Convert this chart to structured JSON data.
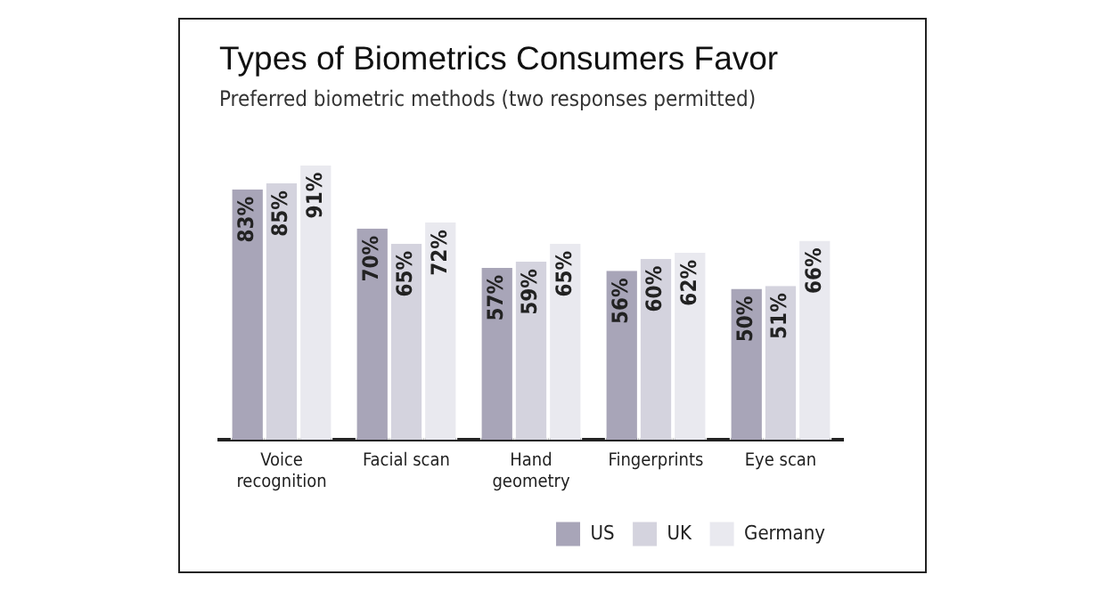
{
  "chart_data": {
    "type": "bar",
    "title": "Types of Biometrics Consumers Favor",
    "subtitle": "Preferred biometric methods (two responses permitted)",
    "categories": [
      "Voice recognition",
      "Facial scan",
      "Hand geometry",
      "Fingerprints",
      "Eye scan"
    ],
    "series": [
      {
        "name": "US",
        "color": "#a8a5b8",
        "values": [
          83,
          70,
          57,
          56,
          50
        ],
        "value_labels": [
          "83%",
          "70%",
          "57%",
          "56%",
          "50%"
        ]
      },
      {
        "name": "UK",
        "color": "#d4d3de",
        "values": [
          85,
          65,
          59,
          60,
          51
        ],
        "value_labels": [
          "85%",
          "65%",
          "59%",
          "60%",
          "51%"
        ]
      },
      {
        "name": "Germany",
        "color": "#e9e9ef",
        "values": [
          91,
          72,
          65,
          62,
          66
        ],
        "value_labels": [
          "91%",
          "72%",
          "65%",
          "62%",
          "66%"
        ]
      }
    ],
    "grid": false,
    "legend": "bottom right"
  }
}
